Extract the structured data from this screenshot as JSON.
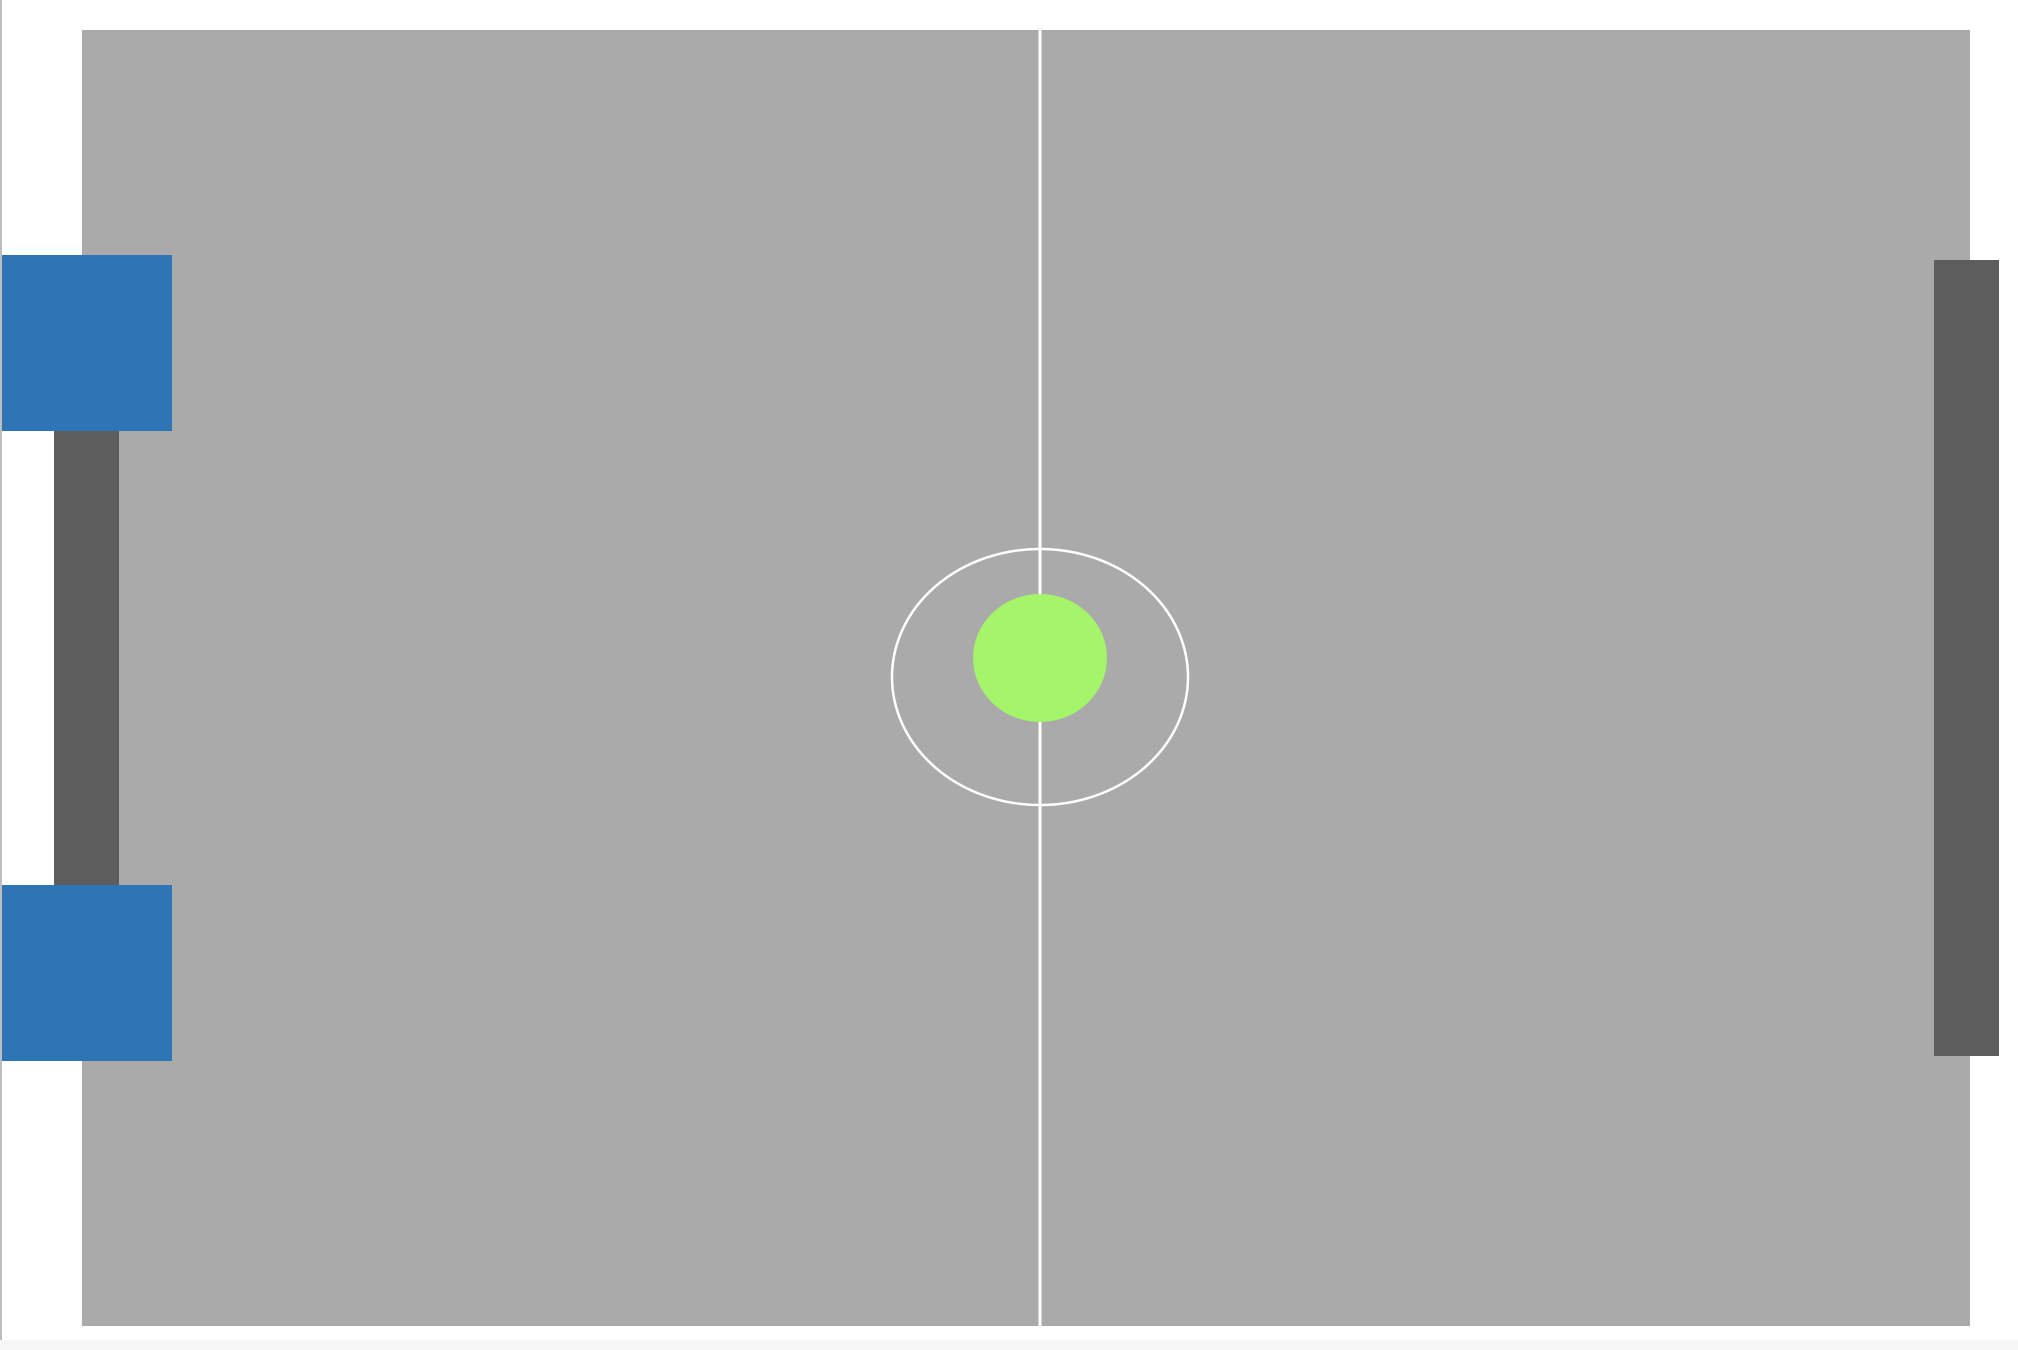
{
  "game": {
    "type": "air-hockey",
    "field": {
      "color": "#aaaaaa",
      "line_color": "#ffffff"
    },
    "puck": {
      "color": "#a4f56a",
      "icon": "puck-icon"
    },
    "left_paddle": {
      "color": "#5d5d5d"
    },
    "right_paddle": {
      "color": "#5d5d5d"
    },
    "goal_blocks": {
      "color": "#2e75b6"
    }
  }
}
